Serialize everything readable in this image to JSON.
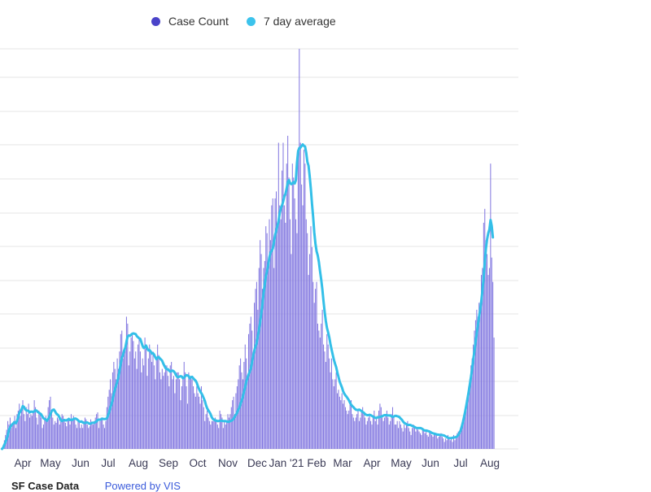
{
  "legend": {
    "case_label": "Case Count",
    "avg_label": "7 day average"
  },
  "colors": {
    "bars": "#8277e0",
    "bar_dark": "#5b4fd0",
    "avg_line": "#33bfe8",
    "grid": "#e6e6e6",
    "dot_case": "#4a43c9",
    "dot_avg": "#3cc3ec"
  },
  "footer": {
    "source": "SF Case Data",
    "link": "Powered by VIS"
  },
  "chart_data": {
    "type": "bar",
    "title": "",
    "xlabel": "",
    "ylabel": "",
    "x_tick_labels": [
      "Apr",
      "May",
      "Jun",
      "Jul",
      "Aug",
      "Sep",
      "Oct",
      "Nov",
      "Dec",
      "Jan '21",
      "Feb",
      "Mar",
      "Apr",
      "May",
      "Jun",
      "Jul",
      "Aug"
    ],
    "ylim": [
      0,
      1150
    ],
    "grid": true,
    "legend_position": "top-center",
    "series": [
      {
        "name": "Case Count",
        "type": "bar",
        "values": [
          0,
          10,
          25,
          40,
          55,
          80,
          70,
          90,
          60,
          75,
          80,
          95,
          60,
          100,
          110,
          130,
          95,
          120,
          140,
          100,
          80,
          120,
          100,
          130,
          90,
          100,
          95,
          110,
          140,
          120,
          90,
          70,
          110,
          100,
          90,
          60,
          70,
          85,
          95,
          80,
          120,
          140,
          150,
          110,
          90,
          70,
          80,
          75,
          90,
          85,
          70,
          90,
          100,
          95,
          80,
          75,
          65,
          85,
          90,
          70,
          100,
          80,
          95,
          85,
          70,
          60,
          80,
          75,
          60,
          70,
          60,
          80,
          90,
          85,
          70,
          60,
          65,
          85,
          75,
          70,
          80,
          90,
          100,
          105,
          60,
          80,
          90,
          85,
          70,
          60,
          80,
          120,
          150,
          170,
          200,
          160,
          220,
          250,
          230,
          200,
          260,
          230,
          280,
          330,
          340,
          260,
          280,
          300,
          380,
          360,
          240,
          280,
          320,
          330,
          310,
          260,
          280,
          230,
          300,
          320,
          280,
          220,
          260,
          240,
          320,
          300,
          210,
          260,
          300,
          280,
          250,
          280,
          240,
          200,
          260,
          300,
          270,
          220,
          200,
          230,
          210,
          220,
          240,
          240,
          210,
          180,
          240,
          250,
          200,
          210,
          160,
          200,
          220,
          220,
          200,
          140,
          180,
          200,
          250,
          220,
          180,
          130,
          220,
          200,
          210,
          200,
          180,
          160,
          150,
          180,
          160,
          150,
          130,
          180,
          140,
          120,
          80,
          100,
          110,
          90,
          80,
          70,
          80,
          80,
          85,
          90,
          85,
          70,
          60,
          110,
          100,
          90,
          60,
          80,
          70,
          80,
          100,
          90,
          100,
          120,
          140,
          150,
          100,
          160,
          180,
          200,
          240,
          260,
          220,
          200,
          250,
          300,
          260,
          200,
          330,
          360,
          380,
          340,
          260,
          420,
          460,
          480,
          400,
          520,
          600,
          560,
          460,
          520,
          540,
          640,
          620,
          520,
          660,
          600,
          700,
          720,
          520,
          720,
          740,
          640,
          880,
          700,
          660,
          800,
          880,
          700,
          650,
          820,
          900,
          780,
          660,
          560,
          820,
          780,
          720,
          660,
          620,
          850,
          1150,
          880,
          760,
          700,
          860,
          820,
          660,
          620,
          500,
          560,
          640,
          580,
          480,
          420,
          460,
          480,
          360,
          340,
          320,
          360,
          400,
          300,
          280,
          250,
          330,
          300,
          260,
          220,
          260,
          200,
          180,
          200,
          220,
          160,
          170,
          150,
          140,
          160,
          130,
          140,
          120,
          110,
          100,
          110,
          130,
          140,
          100,
          90,
          80,
          90,
          100,
          110,
          80,
          90,
          110,
          120,
          100,
          90,
          70,
          80,
          90,
          100,
          80,
          70,
          90,
          110,
          80,
          90,
          70,
          110,
          130,
          120,
          90,
          80,
          90,
          100,
          110,
          90,
          70,
          80,
          100,
          120,
          90,
          70,
          70,
          80,
          60,
          80,
          70,
          60,
          50,
          70,
          60,
          70,
          80,
          60,
          50,
          40,
          60,
          70,
          60,
          50,
          60,
          55,
          50,
          45,
          40,
          60,
          55,
          45,
          50,
          40,
          35,
          50,
          45,
          40,
          35,
          45,
          40,
          45,
          30,
          35,
          40,
          45,
          35,
          30,
          20,
          30,
          25,
          40,
          30,
          25,
          30,
          20,
          40,
          25,
          30,
          45,
          50,
          40,
          55,
          60,
          70,
          90,
          110,
          140,
          150,
          180,
          200,
          240,
          260,
          300,
          340,
          370,
          400,
          380,
          420,
          420,
          500,
          520,
          650,
          690,
          600,
          560,
          500,
          520,
          820,
          550,
          480,
          320
        ]
      },
      {
        "name": "7 day average",
        "type": "line",
        "values": [
          0,
          4,
          12,
          19,
          29,
          39,
          55,
          62,
          67,
          71,
          74,
          77,
          74,
          80,
          91,
          103,
          108,
          114,
          123,
          121,
          114,
          111,
          110,
          109,
          105,
          107,
          107,
          106,
          108,
          111,
          110,
          106,
          104,
          102,
          99,
          93,
          88,
          86,
          84,
          81,
          86,
          91,
          100,
          108,
          112,
          113,
          108,
          102,
          99,
          96,
          89,
          83,
          80,
          82,
          83,
          82,
          82,
          84,
          86,
          83,
          84,
          83,
          86,
          87,
          87,
          85,
          82,
          79,
          78,
          79,
          76,
          75,
          74,
          76,
          76,
          74,
          72,
          73,
          75,
          75,
          75,
          77,
          79,
          83,
          84,
          84,
          85,
          87,
          86,
          86,
          86,
          88,
          96,
          106,
          119,
          128,
          142,
          158,
          172,
          182,
          193,
          206,
          225,
          245,
          262,
          270,
          283,
          291,
          308,
          323,
          326,
          325,
          328,
          331,
          332,
          331,
          330,
          324,
          321,
          318,
          316,
          306,
          296,
          290,
          293,
          297,
          289,
          283,
          284,
          280,
          274,
          275,
          271,
          263,
          258,
          263,
          264,
          260,
          257,
          253,
          245,
          238,
          232,
          229,
          229,
          225,
          222,
          224,
          225,
          223,
          219,
          212,
          207,
          206,
          208,
          209,
          208,
          203,
          205,
          209,
          212,
          211,
          209,
          203,
          206,
          207,
          203,
          199,
          196,
          190,
          180,
          172,
          165,
          160,
          154,
          146,
          138,
          126,
          117,
          111,
          106,
          100,
          91,
          86,
          84,
          82,
          81,
          80,
          80,
          81,
          81,
          81,
          80,
          80,
          80,
          79,
          78,
          78,
          80,
          81,
          83,
          87,
          93,
          98,
          104,
          112,
          119,
          129,
          139,
          150,
          164,
          178,
          193,
          204,
          214,
          222,
          232,
          249,
          268,
          283,
          294,
          305,
          323,
          344,
          363,
          389,
          415,
          447,
          473,
          496,
          511,
          528,
          550,
          564,
          569,
          576,
          594,
          615,
          627,
          641,
          655,
          678,
          692,
          700,
          711,
          726,
          733,
          748,
          767,
          773,
          764,
          761,
          763,
          767,
          763,
          772,
          823,
          856,
          865,
          866,
          871,
          875,
          871,
          869,
          851,
          825,
          814,
          784,
          748,
          705,
          667,
          622,
          590,
          568,
          556,
          537,
          511,
          487,
          459,
          425,
          394,
          368,
          348,
          335,
          321,
          302,
          286,
          271,
          256,
          245,
          235,
          220,
          207,
          194,
          185,
          177,
          166,
          159,
          154,
          150,
          145,
          140,
          133,
          127,
          123,
          120,
          116,
          113,
          112,
          112,
          113,
          111,
          109,
          106,
          104,
          100,
          98,
          97,
          97,
          98,
          97,
          95,
          93,
          91,
          89,
          89,
          91,
          91,
          92,
          93,
          94,
          96,
          97,
          97,
          97,
          96,
          96,
          96,
          94,
          92,
          93,
          95,
          95,
          94,
          93,
          91,
          87,
          84,
          79,
          75,
          73,
          71,
          69,
          69,
          69,
          68,
          66,
          65,
          63,
          61,
          60,
          60,
          60,
          60,
          59,
          57,
          54,
          53,
          53,
          52,
          51,
          50,
          48,
          46,
          45,
          44,
          43,
          42,
          41,
          41,
          40,
          40,
          40,
          39,
          38,
          36,
          34,
          32,
          31,
          31,
          31,
          32,
          33,
          33,
          34,
          36,
          40,
          46,
          53,
          64,
          77,
          92,
          108,
          126,
          145,
          164,
          185,
          207,
          230,
          258,
          281,
          308,
          331,
          357,
          379,
          400,
          426,
          457,
          494,
          537,
          577,
          603,
          620,
          631,
          658,
          641,
          608
        ]
      }
    ]
  }
}
